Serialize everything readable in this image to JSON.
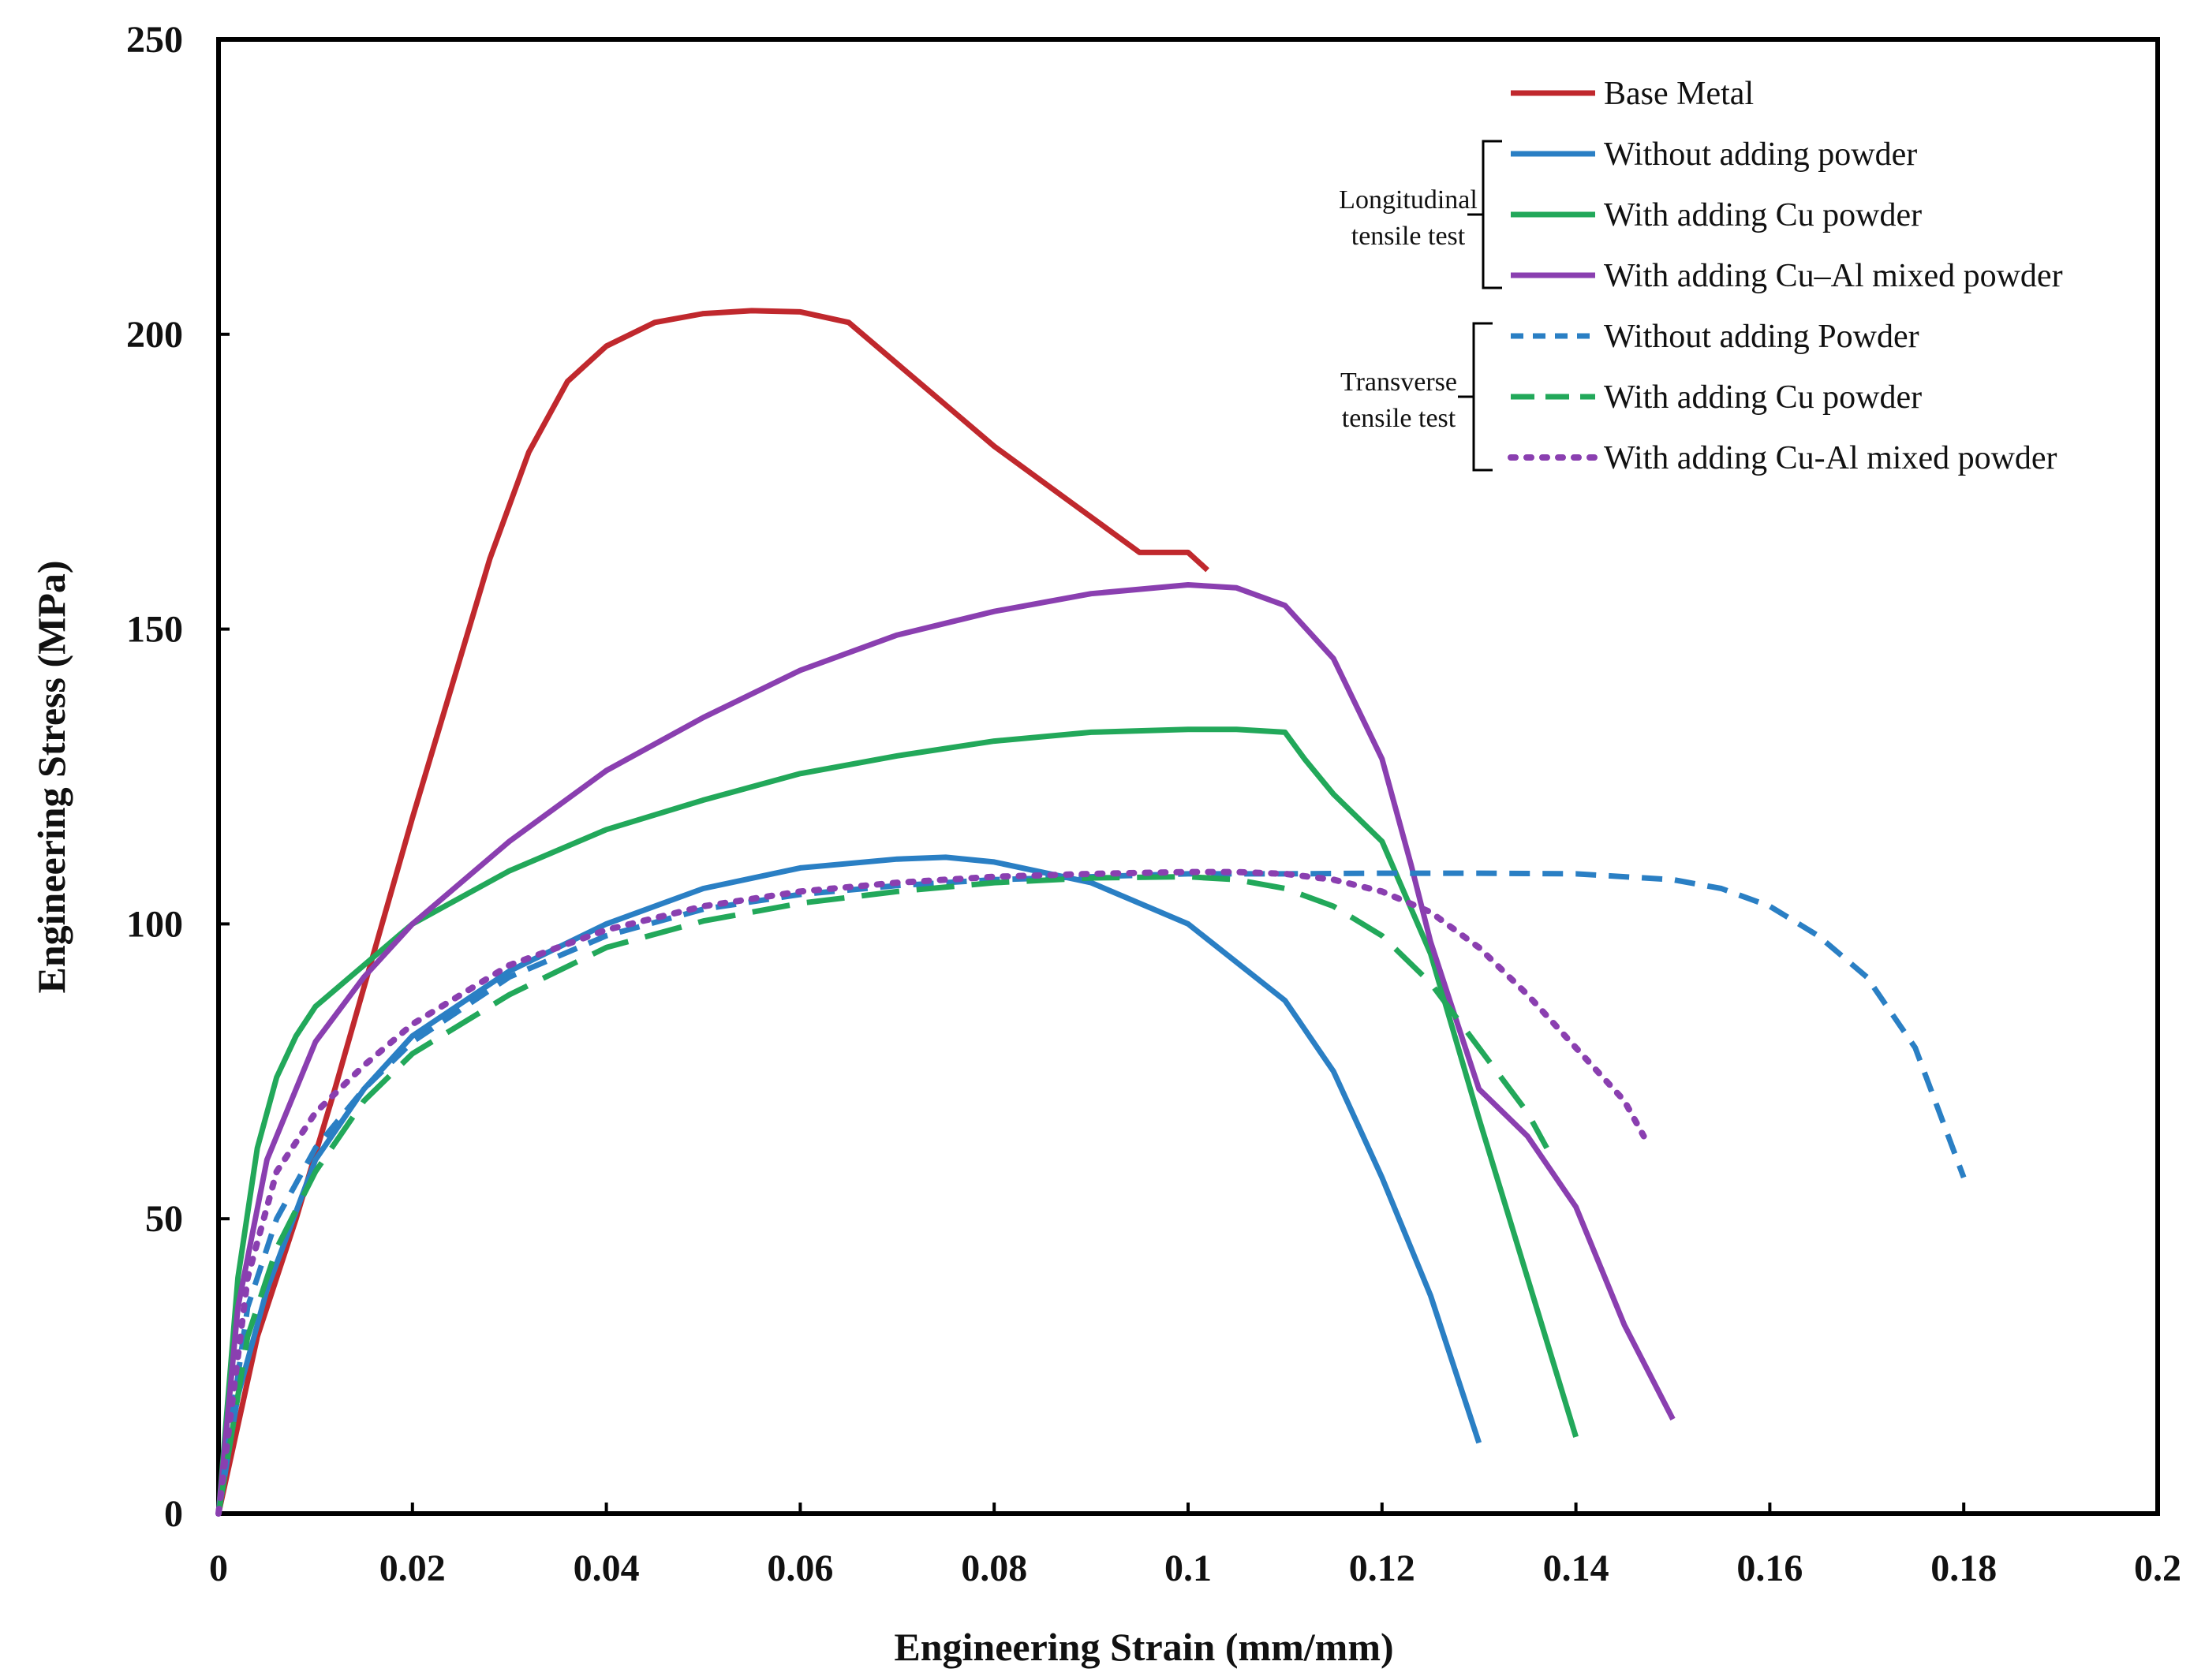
{
  "chart_data": {
    "type": "line",
    "title": "",
    "xlabel": "Engineering Strain (mm/mm)",
    "ylabel": "Engineering Stress (MPa)",
    "xlim": [
      0,
      0.2
    ],
    "ylim": [
      0,
      250
    ],
    "x_ticks": [
      0,
      0.02,
      0.04,
      0.06,
      0.08,
      0.1,
      0.12,
      0.14,
      0.16,
      0.18,
      0.2
    ],
    "x_tick_labels": [
      "0",
      "0.02",
      "0.04",
      "0.06",
      "0.08",
      "0.1",
      "0.12",
      "0.14",
      "0.16",
      "0.18",
      "0.2"
    ],
    "y_ticks": [
      0,
      50,
      100,
      150,
      200,
      250
    ],
    "y_tick_labels": [
      "0",
      "50",
      "100",
      "150",
      "200",
      "250"
    ],
    "grid": false,
    "legend_position": "top-right",
    "legend_groups": [
      {
        "name": "",
        "members": [
          "Base Metal"
        ]
      },
      {
        "name": "Longitudinal tensile test",
        "lines": [
          "Longitudinal",
          "tensile test"
        ],
        "members": [
          "Without adding powder",
          "With adding Cu powder",
          "With adding Cu–Al mixed powder"
        ]
      },
      {
        "name": "Transverse tensile test",
        "lines": [
          "Transverse",
          "tensile test"
        ],
        "members": [
          "Without adding Powder",
          "With adding Cu powder",
          "With adding Cu-Al mixed powder"
        ]
      }
    ],
    "series": [
      {
        "name": "Base Metal",
        "color": "#c0282d",
        "style": "solid",
        "x": [
          0,
          0.004,
          0.008,
          0.012,
          0.016,
          0.02,
          0.024,
          0.028,
          0.032,
          0.036,
          0.04,
          0.045,
          0.05,
          0.055,
          0.06,
          0.065,
          0.07,
          0.075,
          0.08,
          0.085,
          0.09,
          0.095,
          0.1,
          0.102
        ],
        "y": [
          0,
          30,
          50,
          72,
          95,
          118,
          140,
          162,
          180,
          192,
          198,
          202,
          203.5,
          204,
          203.8,
          202,
          195,
          188,
          181,
          175,
          169,
          163,
          163,
          160
        ]
      },
      {
        "name": "Without adding powder",
        "color": "#2a7fc4",
        "style": "solid",
        "x": [
          0,
          0.002,
          0.005,
          0.01,
          0.015,
          0.02,
          0.03,
          0.04,
          0.05,
          0.06,
          0.07,
          0.075,
          0.08,
          0.09,
          0.1,
          0.11,
          0.115,
          0.12,
          0.125,
          0.13
        ],
        "y": [
          0,
          20,
          38,
          60,
          72,
          81,
          92,
          100,
          106,
          109.5,
          111,
          111.3,
          110.5,
          107,
          100,
          87,
          75,
          57,
          37,
          12
        ]
      },
      {
        "name": "With adding Cu powder",
        "color": "#22a85a",
        "style": "solid",
        "x": [
          0,
          0.002,
          0.004,
          0.006,
          0.008,
          0.01,
          0.015,
          0.02,
          0.03,
          0.04,
          0.05,
          0.06,
          0.07,
          0.08,
          0.09,
          0.1,
          0.105,
          0.11,
          0.112,
          0.115,
          0.12,
          0.125,
          0.13,
          0.135,
          0.14
        ],
        "y": [
          0,
          40,
          62,
          74,
          81,
          86,
          93,
          100,
          109,
          116,
          121,
          125.5,
          128.5,
          131,
          132.5,
          133,
          133,
          132.5,
          128,
          122,
          114,
          95,
          67,
          40,
          13
        ]
      },
      {
        "name": "With adding Cu–Al mixed powder",
        "color": "#8a3fb0",
        "style": "solid",
        "x": [
          0,
          0.002,
          0.005,
          0.01,
          0.015,
          0.02,
          0.03,
          0.04,
          0.05,
          0.06,
          0.07,
          0.08,
          0.09,
          0.1,
          0.105,
          0.11,
          0.115,
          0.12,
          0.123,
          0.125,
          0.128,
          0.13,
          0.135,
          0.14,
          0.145,
          0.15
        ],
        "y": [
          0,
          35,
          60,
          80,
          91,
          100,
          114,
          126,
          135,
          143,
          149,
          153,
          156,
          157.5,
          157,
          154,
          145,
          128,
          110,
          97,
          82,
          72,
          64,
          52,
          32,
          16
        ]
      },
      {
        "name": "Without adding Powder",
        "color": "#2a7fc4",
        "style": "dashed",
        "x": [
          0,
          0.003,
          0.006,
          0.01,
          0.015,
          0.02,
          0.03,
          0.04,
          0.05,
          0.06,
          0.07,
          0.08,
          0.09,
          0.1,
          0.11,
          0.12,
          0.13,
          0.14,
          0.15,
          0.155,
          0.16,
          0.165,
          0.17,
          0.175,
          0.18
        ],
        "y": [
          0,
          35,
          50,
          62,
          72,
          80,
          91,
          98,
          102.5,
          105,
          106.5,
          107.5,
          108,
          108.5,
          108.5,
          108.6,
          108.6,
          108.5,
          107.5,
          106,
          103,
          98,
          91,
          79,
          57
        ]
      },
      {
        "name": "With adding Cu powder",
        "color": "#22a85a",
        "style": "longdash",
        "x": [
          0,
          0.003,
          0.006,
          0.01,
          0.015,
          0.02,
          0.03,
          0.04,
          0.05,
          0.06,
          0.07,
          0.08,
          0.09,
          0.1,
          0.105,
          0.11,
          0.115,
          0.12,
          0.125,
          0.13,
          0.135,
          0.137
        ],
        "y": [
          0,
          30,
          45,
          58,
          70,
          78,
          88,
          96,
          100.5,
          103.5,
          105.5,
          107,
          107.8,
          108,
          107.5,
          106,
          103,
          98,
          90,
          79,
          68,
          62
        ]
      },
      {
        "name": "With adding Cu-Al mixed powder",
        "color": "#8a3fb0",
        "style": "dotted",
        "x": [
          0,
          0.003,
          0.006,
          0.01,
          0.015,
          0.02,
          0.03,
          0.04,
          0.05,
          0.06,
          0.07,
          0.08,
          0.09,
          0.1,
          0.105,
          0.11,
          0.115,
          0.12,
          0.125,
          0.13,
          0.135,
          0.14,
          0.145,
          0.147
        ],
        "y": [
          0,
          40,
          58,
          68,
          76,
          83,
          93,
          99,
          103,
          105.5,
          107,
          108,
          108.5,
          108.8,
          108.8,
          108.5,
          107.5,
          105.5,
          102,
          96,
          88,
          79,
          70,
          64
        ]
      }
    ]
  }
}
